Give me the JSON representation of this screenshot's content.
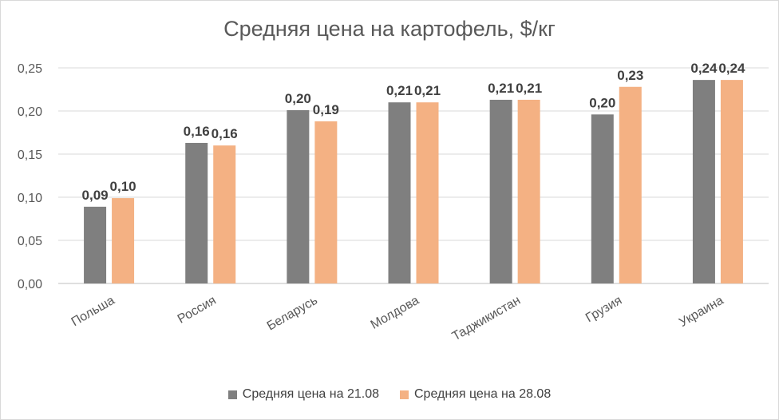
{
  "chart_data": {
    "type": "bar",
    "title": "Средняя цена на картофель, $/кг",
    "categories": [
      "Польша",
      "Россия",
      "Беларусь",
      "Молдова",
      "Таджикистан",
      "Грузия",
      "Украина"
    ],
    "series": [
      {
        "name": "Средняя цена на 21.08",
        "color": "#7f7f7f",
        "values": [
          0.089,
          0.163,
          0.201,
          0.21,
          0.213,
          0.196,
          0.236
        ],
        "labels": [
          "0,09",
          "0,16",
          "0,20",
          "0,21",
          "0,21",
          "0,20",
          "0,24"
        ]
      },
      {
        "name": "Средняя цена на 28.08",
        "color": "#f4b183",
        "values": [
          0.099,
          0.16,
          0.188,
          0.21,
          0.213,
          0.228,
          0.236
        ],
        "labels": [
          "0,10",
          "0,16",
          "0,19",
          "0,21",
          "0,21",
          "0,23",
          "0,24"
        ]
      }
    ],
    "ylim": [
      0,
      0.25
    ],
    "yticks": [
      0,
      0.05,
      0.1,
      0.15,
      0.2,
      0.25
    ],
    "ytick_labels": [
      "0,00",
      "0,05",
      "0,10",
      "0,15",
      "0,20",
      "0,25"
    ],
    "grid": true,
    "legend_position": "bottom"
  }
}
